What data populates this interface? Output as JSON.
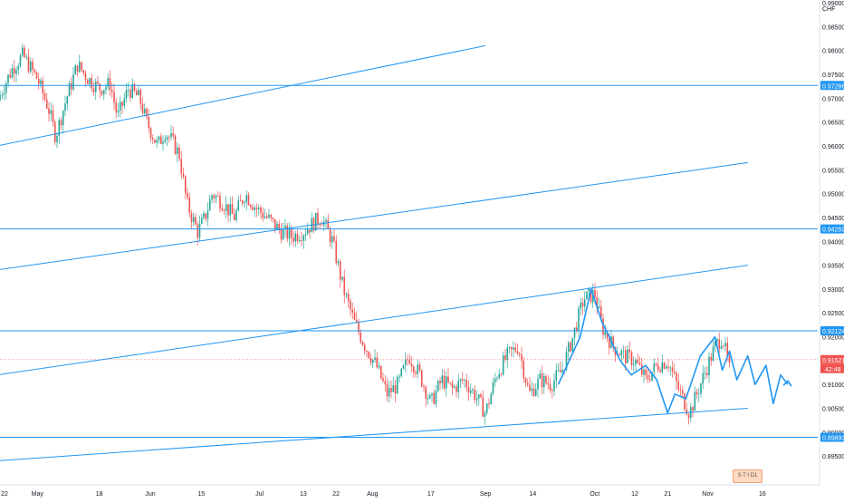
{
  "chart_data": {
    "type": "candlestick",
    "currency": "CHF",
    "ylim": [
      0.892,
      0.99
    ],
    "y_ticks": [
      "0.99000",
      "0.98500",
      "0.98000",
      "0.97500",
      "0.97000",
      "0.96500",
      "0.96000",
      "0.95500",
      "0.95000",
      "0.94500",
      "0.94000",
      "0.93500",
      "0.93000",
      "0.92500",
      "0.92000",
      "0.91500",
      "0.91000",
      "0.90500",
      "0.90000",
      "0.89500"
    ],
    "x_ticks": [
      {
        "label": "22",
        "date": "2019-04-22"
      },
      {
        "label": "May",
        "date": "2019-05-01"
      },
      {
        "label": "18",
        "date": "2019-05-18"
      },
      {
        "label": "Jun",
        "date": "2019-06-01"
      },
      {
        "label": "15",
        "date": "2019-06-15"
      },
      {
        "label": "Jul",
        "date": "2019-07-01"
      },
      {
        "label": "13",
        "date": "2019-07-13"
      },
      {
        "label": "22",
        "date": "2019-07-22"
      },
      {
        "label": "Aug",
        "date": "2019-08-01"
      },
      {
        "label": "17",
        "date": "2019-08-17"
      },
      {
        "label": "Sep",
        "date": "2019-09-01"
      },
      {
        "label": "14",
        "date": "2019-09-14"
      },
      {
        "label": "Oct",
        "date": "2019-10-01"
      },
      {
        "label": "12",
        "date": "2019-10-12"
      },
      {
        "label": "21",
        "date": "2019-10-21"
      },
      {
        "label": "Nov",
        "date": "2019-11-01"
      },
      {
        "label": "16",
        "date": "2019-11-16"
      }
    ],
    "price_path": [
      [
        "2019-04-20",
        0.9695
      ],
      [
        "2019-04-24",
        0.976
      ],
      [
        "2019-04-27",
        0.979
      ],
      [
        "2019-05-01",
        0.974
      ],
      [
        "2019-05-04",
        0.968
      ],
      [
        "2019-05-06",
        0.962
      ],
      [
        "2019-05-09",
        0.97
      ],
      [
        "2019-05-12",
        0.977
      ],
      [
        "2019-05-15",
        0.974
      ],
      [
        "2019-05-18",
        0.972
      ],
      [
        "2019-05-21",
        0.973
      ],
      [
        "2019-05-23",
        0.966
      ],
      [
        "2019-05-26",
        0.972
      ],
      [
        "2019-05-29",
        0.97
      ],
      [
        "2019-05-31",
        0.965
      ],
      [
        "2019-06-03",
        0.96
      ],
      [
        "2019-06-05",
        0.963
      ],
      [
        "2019-06-07",
        0.961
      ],
      [
        "2019-06-09",
        0.958
      ],
      [
        "2019-06-11",
        0.948
      ],
      [
        "2019-06-14",
        0.942
      ],
      [
        "2019-06-16",
        0.945
      ],
      [
        "2019-06-18",
        0.95
      ],
      [
        "2019-06-21",
        0.948
      ],
      [
        "2019-06-24",
        0.945
      ],
      [
        "2019-06-27",
        0.95
      ],
      [
        "2019-06-30",
        0.947
      ],
      [
        "2019-07-03",
        0.945
      ],
      [
        "2019-07-07",
        0.942
      ],
      [
        "2019-07-10",
        0.941
      ],
      [
        "2019-07-13",
        0.942
      ],
      [
        "2019-07-16",
        0.944
      ],
      [
        "2019-07-18",
        0.945
      ],
      [
        "2019-07-21",
        0.94
      ],
      [
        "2019-07-24",
        0.93
      ],
      [
        "2019-07-27",
        0.923
      ],
      [
        "2019-07-30",
        0.918
      ],
      [
        "2019-08-02",
        0.914
      ],
      [
        "2019-08-05",
        0.908
      ],
      [
        "2019-08-08",
        0.91
      ],
      [
        "2019-08-11",
        0.916
      ],
      [
        "2019-08-14",
        0.912
      ],
      [
        "2019-08-17",
        0.906
      ],
      [
        "2019-08-20",
        0.911
      ],
      [
        "2019-08-23",
        0.909
      ],
      [
        "2019-08-26",
        0.911
      ],
      [
        "2019-08-29",
        0.908
      ],
      [
        "2019-09-01",
        0.904
      ],
      [
        "2019-09-04",
        0.912
      ],
      [
        "2019-09-07",
        0.916
      ],
      [
        "2019-09-10",
        0.918
      ],
      [
        "2019-09-13",
        0.908
      ],
      [
        "2019-09-16",
        0.911
      ],
      [
        "2019-09-19",
        0.91
      ],
      [
        "2019-09-22",
        0.913
      ],
      [
        "2019-09-25",
        0.92
      ],
      [
        "2019-09-28",
        0.928
      ],
      [
        "2019-10-01",
        0.929
      ],
      [
        "2019-10-03",
        0.922
      ],
      [
        "2019-10-06",
        0.918
      ],
      [
        "2019-10-09",
        0.916
      ],
      [
        "2019-10-12",
        0.915
      ],
      [
        "2019-10-15",
        0.911
      ],
      [
        "2019-10-18",
        0.914
      ],
      [
        "2019-10-21",
        0.915
      ],
      [
        "2019-10-24",
        0.909
      ],
      [
        "2019-10-27",
        0.904
      ],
      [
        "2019-10-30",
        0.91
      ],
      [
        "2019-11-01",
        0.914
      ],
      [
        "2019-11-03",
        0.918
      ],
      [
        "2019-11-05",
        0.92
      ],
      [
        "2019-11-07",
        0.913
      ]
    ],
    "horizontal_levels": [
      {
        "value": 0.97266,
        "label": "0.97266"
      },
      {
        "value": 0.94259,
        "label": "0.94259"
      },
      {
        "value": 0.92124,
        "label": "0.92124"
      },
      {
        "value": 0.89893,
        "label": "0.89893"
      }
    ],
    "current_price": {
      "value": 0.91521,
      "label": "0.91521",
      "countdown": "42:48"
    },
    "trend_lines": [
      {
        "from": [
          "2019-04-20",
          0.96
        ],
        "to": [
          "2019-09-01",
          0.981
        ]
      },
      {
        "from": [
          "2019-04-20",
          0.934
        ],
        "to": [
          "2019-11-12",
          0.9565
        ]
      },
      {
        "from": [
          "2019-04-20",
          0.912
        ],
        "to": [
          "2019-11-12",
          0.935
        ]
      },
      {
        "from": [
          "2019-04-20",
          0.894
        ],
        "to": [
          "2019-11-12",
          0.905
        ]
      }
    ],
    "wave_pattern": [
      [
        "2019-09-21",
        0.91
      ],
      [
        "2019-09-27",
        0.92
      ],
      [
        "2019-09-30",
        0.93
      ],
      [
        "2019-10-03",
        0.923
      ],
      [
        "2019-10-05",
        0.92
      ],
      [
        "2019-10-08",
        0.915
      ],
      [
        "2019-10-11",
        0.912
      ],
      [
        "2019-10-15",
        0.914
      ],
      [
        "2019-10-18",
        0.911
      ],
      [
        "2019-10-21",
        0.904
      ],
      [
        "2019-10-23",
        0.908
      ],
      [
        "2019-10-26",
        0.907
      ],
      [
        "2019-10-30",
        0.916
      ],
      [
        "2019-11-03",
        0.92
      ],
      [
        "2019-11-05",
        0.913
      ],
      [
        "2019-11-07",
        0.917
      ],
      [
        "2019-11-09",
        0.911
      ],
      [
        "2019-11-12",
        0.916
      ],
      [
        "2019-11-14",
        0.91
      ],
      [
        "2019-11-17",
        0.914
      ],
      [
        "2019-11-19",
        0.906
      ],
      [
        "2019-11-21",
        0.912
      ],
      [
        "2019-11-23",
        0.91
      ]
    ],
    "badge_text": "S T I D1"
  },
  "colors": {
    "up": "#26a69a",
    "down": "#ef5350",
    "line": "#2196f3",
    "level_badge": "#2196f3",
    "price_badge": "#ef5350",
    "axis_text": "#131722"
  }
}
